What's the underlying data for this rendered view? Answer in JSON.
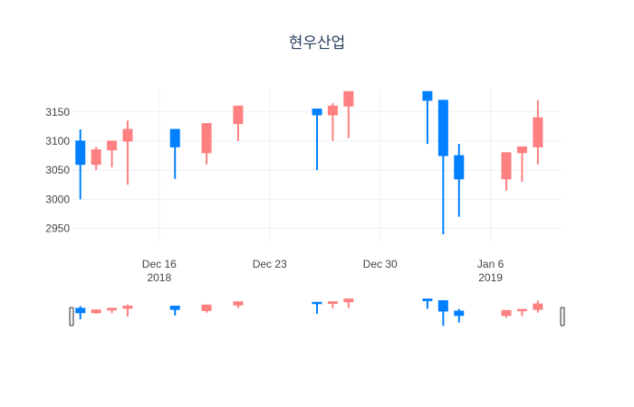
{
  "chart_data": {
    "type": "candlestick",
    "title": "현우산업",
    "xlabel": "",
    "ylabel": "",
    "ylim": [
      2926,
      3190
    ],
    "x_range": [
      "2018-12-10T12:00:00",
      "2019-01-10T12:00:00"
    ],
    "y_ticks": [
      2950,
      3000,
      3050,
      3100,
      3150
    ],
    "x_ticks": [
      {
        "date": "2018-12-16",
        "label": "Dec 16",
        "sublabel": "2018"
      },
      {
        "date": "2018-12-23",
        "label": "Dec 23",
        "sublabel": ""
      },
      {
        "date": "2018-12-30",
        "label": "Dec 30",
        "sublabel": ""
      },
      {
        "date": "2019-01-06",
        "label": "Jan 6",
        "sublabel": "2019"
      }
    ],
    "colors": {
      "increasing": "#ff8080",
      "decreasing": "#0080ff"
    },
    "grid": true,
    "rangeslider": true,
    "candles": [
      {
        "date": "2018-12-11",
        "open": 3100,
        "high": 3120,
        "low": 3000,
        "close": 3060
      },
      {
        "date": "2018-12-12",
        "open": 3060,
        "high": 3090,
        "low": 3050,
        "close": 3085
      },
      {
        "date": "2018-12-13",
        "open": 3085,
        "high": 3100,
        "low": 3055,
        "close": 3100
      },
      {
        "date": "2018-12-14",
        "open": 3100,
        "high": 3135,
        "low": 3025,
        "close": 3120
      },
      {
        "date": "2018-12-17",
        "open": 3120,
        "high": 3120,
        "low": 3035,
        "close": 3090
      },
      {
        "date": "2018-12-19",
        "open": 3080,
        "high": 3130,
        "low": 3060,
        "close": 3130
      },
      {
        "date": "2018-12-21",
        "open": 3130,
        "high": 3160,
        "low": 3100,
        "close": 3160
      },
      {
        "date": "2018-12-26",
        "open": 3155,
        "high": 3155,
        "low": 3050,
        "close": 3145
      },
      {
        "date": "2018-12-27",
        "open": 3145,
        "high": 3165,
        "low": 3100,
        "close": 3160
      },
      {
        "date": "2018-12-28",
        "open": 3160,
        "high": 3185,
        "low": 3105,
        "close": 3185
      },
      {
        "date": "2019-01-02",
        "open": 3185,
        "high": 3185,
        "low": 3095,
        "close": 3170
      },
      {
        "date": "2019-01-03",
        "open": 3170,
        "high": 3170,
        "low": 2940,
        "close": 3075
      },
      {
        "date": "2019-01-04",
        "open": 3075,
        "high": 3095,
        "low": 2970,
        "close": 3035
      },
      {
        "date": "2019-01-07",
        "open": 3035,
        "high": 3080,
        "low": 3015,
        "close": 3080
      },
      {
        "date": "2019-01-08",
        "open": 3080,
        "high": 3090,
        "low": 3030,
        "close": 3090
      },
      {
        "date": "2019-01-09",
        "open": 3090,
        "high": 3170,
        "low": 3060,
        "close": 3140
      }
    ]
  }
}
